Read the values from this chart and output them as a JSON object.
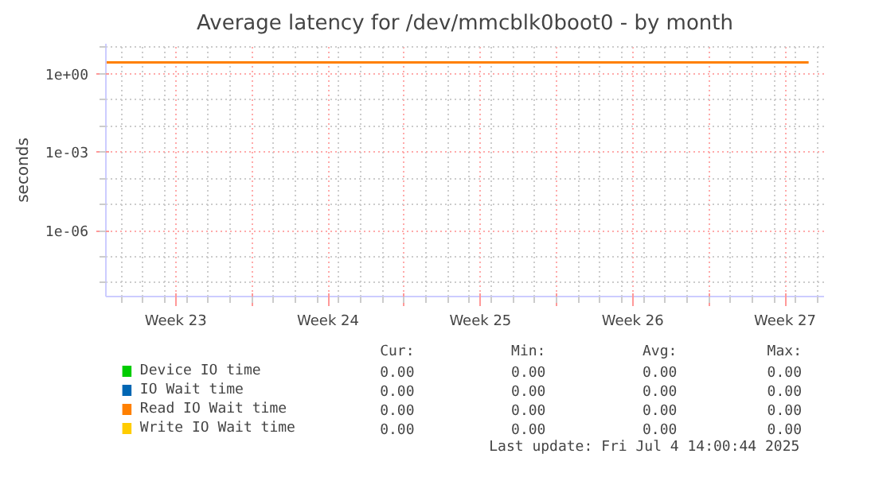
{
  "chart_data": {
    "type": "line",
    "title": "Average latency for /dev/mmcblk0boot0 - by month",
    "ylabel": "seconds",
    "log": "y",
    "grid": true,
    "legend": "bottom",
    "xlim": [
      "2025-06-02T07:00",
      "2025-07-05T07:00"
    ],
    "ylim": [
      3e-09,
      14
    ],
    "yticks": [
      {
        "value": 1e-06,
        "label": "1e-06"
      },
      {
        "value": 0.001,
        "label": "1e-03"
      },
      {
        "value": 1,
        "label": "1e+00"
      }
    ],
    "xticks": [
      {
        "value": "2025-06-05T12:00",
        "label": "Week 23"
      },
      {
        "value": "2025-06-09",
        "label": null
      },
      {
        "value": "2025-06-12T12:00",
        "label": "Week 24"
      },
      {
        "value": "2025-06-16",
        "label": null
      },
      {
        "value": "2025-06-19T12:00",
        "label": "Week 25"
      },
      {
        "value": "2025-06-23",
        "label": null
      },
      {
        "value": "2025-06-26T12:00",
        "label": "Week 26"
      },
      {
        "value": "2025-06-30",
        "label": null
      },
      {
        "value": "2025-07-03T12:00",
        "label": "Week 27"
      }
    ],
    "series": [
      {
        "name": "Device IO time",
        "color": "#00cc00"
      },
      {
        "name": "IO Wait time",
        "color": "#0066b3"
      },
      {
        "name": "Read IO Wait time",
        "color": "#ff8000",
        "x": [
          "2025-06-02T07:00",
          "2025-07-04T14:00"
        ],
        "values": [
          2.7,
          2.7
        ]
      },
      {
        "name": "Write IO Wait time",
        "color": "#ffcc00"
      }
    ],
    "annotations": [
      "Cur:",
      "Min:",
      "Avg:",
      "Max:",
      "0.00",
      "0.00",
      "0.00",
      "0.00",
      "0.00",
      "0.00",
      "0.00",
      "0.00",
      "0.00",
      "0.00",
      "0.00",
      "0.00",
      "0.00",
      "0.00",
      "0.00",
      "0.00",
      "Last update: Fri Jul  4 14:00:44 2025"
    ]
  }
}
